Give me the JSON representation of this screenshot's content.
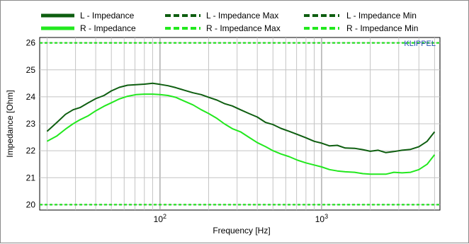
{
  "chart_data": {
    "type": "line",
    "brand": "KLIPPEL",
    "xlabel": "Frequency  [Hz]",
    "ylabel": "Impedance  [Ohm]",
    "xscale": "log",
    "xlim": [
      18,
      5400
    ],
    "ylim": [
      19.8,
      26.2
    ],
    "yticks": [
      20,
      21,
      22,
      23,
      24,
      25,
      26
    ],
    "xticks_major": [
      {
        "value": 100,
        "base": "10",
        "exp": "2"
      },
      {
        "value": 1000,
        "base": "10",
        "exp": "3"
      }
    ],
    "grid": true,
    "colors": {
      "left": "#0e5e10",
      "right": "#22e81e"
    },
    "legend": [
      {
        "label": "L - Impedance",
        "series": "L"
      },
      {
        "label": "L - Impedance Max",
        "series": "L-max"
      },
      {
        "label": "L - Impedance Min",
        "series": "L-min"
      },
      {
        "label": "R - Impedance",
        "series": "R"
      },
      {
        "label": "R - Impedance Max",
        "series": "R-max"
      },
      {
        "label": "R - Impedance Min",
        "series": "R-min"
      }
    ],
    "series": [
      {
        "name": "L - Impedance",
        "key": "L",
        "style": "solid",
        "points": [
          [
            20,
            22.72
          ],
          [
            23,
            23.05
          ],
          [
            26,
            23.35
          ],
          [
            29,
            23.52
          ],
          [
            32,
            23.6
          ],
          [
            36,
            23.78
          ],
          [
            40,
            23.93
          ],
          [
            45,
            24.05
          ],
          [
            50,
            24.22
          ],
          [
            56,
            24.35
          ],
          [
            63,
            24.43
          ],
          [
            71,
            24.45
          ],
          [
            80,
            24.47
          ],
          [
            90,
            24.5
          ],
          [
            100,
            24.46
          ],
          [
            112,
            24.41
          ],
          [
            125,
            24.34
          ],
          [
            140,
            24.25
          ],
          [
            160,
            24.15
          ],
          [
            180,
            24.08
          ],
          [
            200,
            23.98
          ],
          [
            225,
            23.88
          ],
          [
            250,
            23.75
          ],
          [
            280,
            23.66
          ],
          [
            315,
            23.52
          ],
          [
            355,
            23.38
          ],
          [
            400,
            23.25
          ],
          [
            450,
            23.05
          ],
          [
            500,
            22.97
          ],
          [
            560,
            22.83
          ],
          [
            630,
            22.72
          ],
          [
            710,
            22.6
          ],
          [
            800,
            22.48
          ],
          [
            900,
            22.35
          ],
          [
            1000,
            22.28
          ],
          [
            1120,
            22.18
          ],
          [
            1250,
            22.2
          ],
          [
            1400,
            22.1
          ],
          [
            1600,
            22.09
          ],
          [
            1800,
            22.04
          ],
          [
            2000,
            21.98
          ],
          [
            2240,
            22.02
          ],
          [
            2500,
            21.93
          ],
          [
            2800,
            21.97
          ],
          [
            3150,
            22.02
          ],
          [
            3550,
            22.05
          ],
          [
            4000,
            22.15
          ],
          [
            4500,
            22.35
          ],
          [
            5000,
            22.7
          ]
        ]
      },
      {
        "name": "R - Impedance",
        "key": "R",
        "style": "solid",
        "points": [
          [
            20,
            22.35
          ],
          [
            23,
            22.55
          ],
          [
            26,
            22.8
          ],
          [
            29,
            23.0
          ],
          [
            32,
            23.15
          ],
          [
            36,
            23.3
          ],
          [
            40,
            23.48
          ],
          [
            45,
            23.65
          ],
          [
            50,
            23.78
          ],
          [
            56,
            23.92
          ],
          [
            63,
            24.02
          ],
          [
            71,
            24.08
          ],
          [
            80,
            24.1
          ],
          [
            90,
            24.1
          ],
          [
            100,
            24.08
          ],
          [
            112,
            24.05
          ],
          [
            125,
            23.98
          ],
          [
            140,
            23.85
          ],
          [
            160,
            23.7
          ],
          [
            180,
            23.52
          ],
          [
            200,
            23.38
          ],
          [
            225,
            23.2
          ],
          [
            250,
            23.0
          ],
          [
            280,
            22.82
          ],
          [
            315,
            22.7
          ],
          [
            355,
            22.5
          ],
          [
            400,
            22.3
          ],
          [
            450,
            22.15
          ],
          [
            500,
            22.0
          ],
          [
            560,
            21.88
          ],
          [
            630,
            21.78
          ],
          [
            710,
            21.65
          ],
          [
            800,
            21.55
          ],
          [
            900,
            21.47
          ],
          [
            1000,
            21.4
          ],
          [
            1120,
            21.3
          ],
          [
            1250,
            21.25
          ],
          [
            1400,
            21.22
          ],
          [
            1600,
            21.2
          ],
          [
            1800,
            21.15
          ],
          [
            2000,
            21.13
          ],
          [
            2240,
            21.13
          ],
          [
            2500,
            21.13
          ],
          [
            2800,
            21.2
          ],
          [
            3150,
            21.18
          ],
          [
            3550,
            21.2
          ],
          [
            4000,
            21.3
          ],
          [
            4500,
            21.5
          ],
          [
            5000,
            21.85
          ]
        ]
      },
      {
        "name": "L - Impedance Max",
        "key": "L-max",
        "style": "dashed",
        "value": 26.0
      },
      {
        "name": "R - Impedance Max",
        "key": "R-max",
        "style": "dashed",
        "value": 26.0
      },
      {
        "name": "L - Impedance Min",
        "key": "L-min",
        "style": "dashed",
        "value": 20.0
      },
      {
        "name": "R - Impedance Min",
        "key": "R-min",
        "style": "dashed",
        "value": 20.0
      }
    ]
  }
}
